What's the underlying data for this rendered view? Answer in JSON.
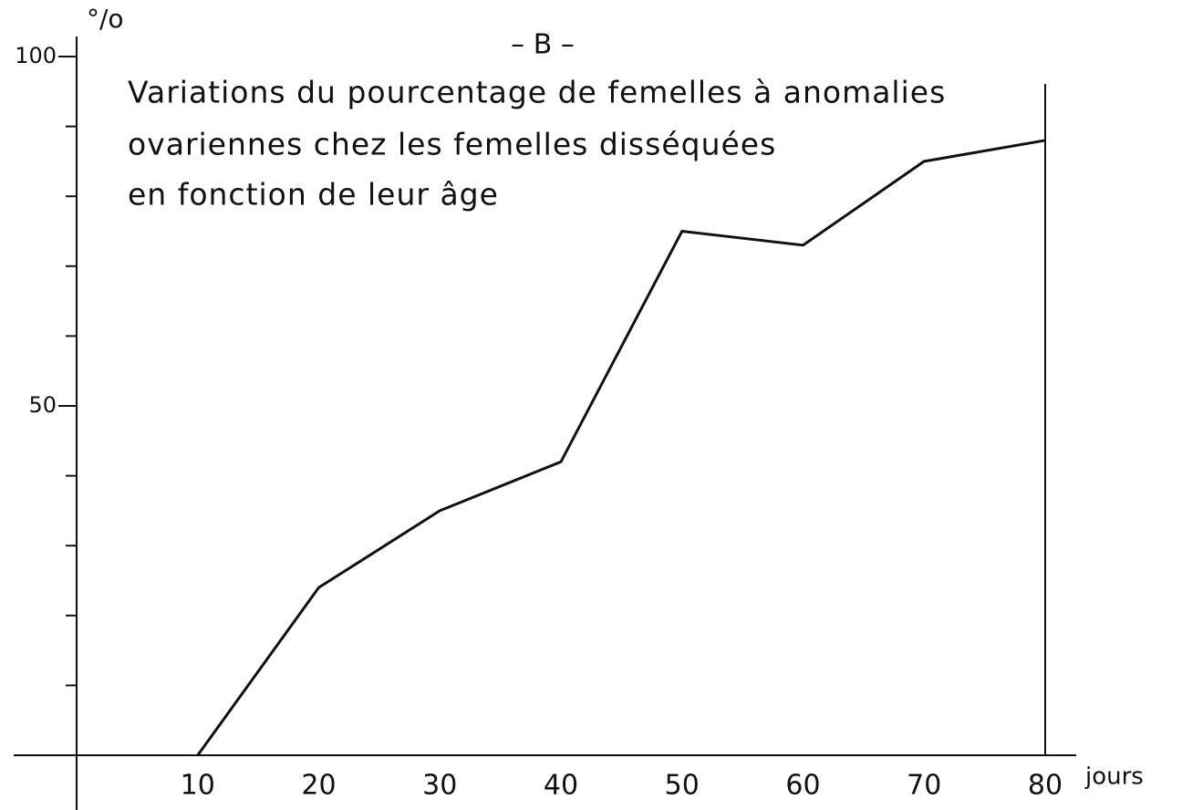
{
  "chart_data": {
    "type": "line",
    "title": "– B –",
    "annotation": [
      "Variations du pourcentage de femelles à anomalies",
      "ovariennes chez les femelles disséquées",
      "en fonction de leur âge"
    ],
    "ylabel": "°/o",
    "xlabel": "jours",
    "x": [
      10,
      20,
      30,
      40,
      50,
      60,
      70,
      80
    ],
    "series": [
      {
        "color": "#111111",
        "values": [
          0,
          24,
          35,
          42,
          75,
          73,
          85,
          88
        ]
      }
    ],
    "xlim": [
      0,
      80
    ],
    "ylim": [
      0,
      100
    ],
    "xticks": [
      10,
      20,
      30,
      40,
      50,
      60,
      70,
      80
    ],
    "yticks": [
      50,
      100
    ],
    "yminor_ticks": [
      10,
      20,
      30,
      40,
      60,
      70,
      80,
      90
    ]
  }
}
